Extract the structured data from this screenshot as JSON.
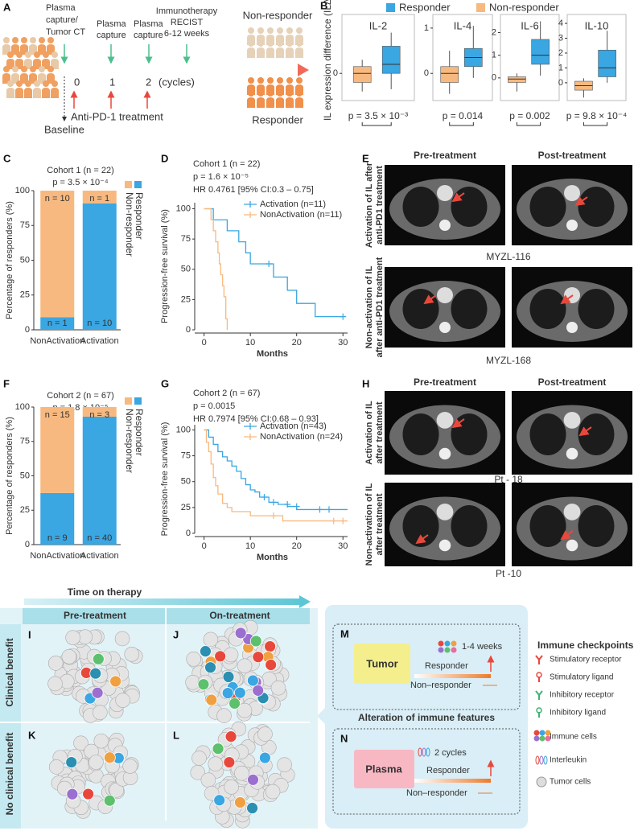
{
  "chart_data": [
    {
      "type": "box",
      "ylabel": "IL expression difference (ILΔ)",
      "series": [
        {
          "name": "Responder",
          "color": "#3aa6e2",
          "values": [
            [
              -0.35,
              0.0,
              0.2,
              0.6,
              0.9
            ],
            [
              -0.1,
              0.15,
              0.35,
              0.55,
              1.05
            ],
            [
              0.1,
              0.6,
              1.0,
              1.7,
              2.5
            ],
            [
              0.0,
              0.4,
              1.0,
              2.2,
              3.5
            ]
          ]
        },
        {
          "name": "Non-responder",
          "color": "#f7b97f",
          "values": [
            [
              -0.4,
              -0.2,
              0.0,
              0.15,
              0.3
            ],
            [
              -0.45,
              -0.2,
              0.0,
              0.15,
              0.5
            ],
            [
              -0.6,
              -0.2,
              -0.05,
              0.05,
              0.2
            ],
            [
              -1.0,
              -0.5,
              -0.2,
              0.1,
              0.3
            ]
          ]
        }
      ],
      "panels": [
        {
          "title": "IL-2",
          "ylim": [
            -0.6,
            1.3
          ],
          "yticks": [
            0
          ],
          "p_label": "p =  3.5 × 10⁻³"
        },
        {
          "title": "IL-4",
          "ylim": [
            -0.6,
            1.3
          ],
          "yticks": [
            0,
            1
          ],
          "p_label": "p = 0.014"
        },
        {
          "title": "IL-6",
          "ylim": [
            -1,
            2.8
          ],
          "yticks": [
            0,
            1,
            2
          ],
          "p_label": "p = 0.002"
        },
        {
          "title": "IL-10",
          "ylim": [
            -1.2,
            4.6
          ],
          "yticks": [
            0,
            1,
            2,
            3,
            4
          ],
          "p_label": "p =  9.8 × 10⁻⁴"
        }
      ]
    },
    {
      "type": "bar",
      "stacked": true,
      "title": "Cohort 1 (n = 22)",
      "subtitle": "p = 3.5 × 10⁻⁴",
      "ylabel": "Percentage of responders (%)",
      "categories": [
        "NonActivation",
        "Activation"
      ],
      "series": [
        {
          "name": "Responder",
          "color": "#3aa6e2",
          "values": [
            9.1,
            90.9
          ],
          "labels": [
            "n = 1",
            "n = 10"
          ]
        },
        {
          "name": "Non-responder",
          "color": "#f7b97f",
          "values": [
            90.9,
            9.1
          ],
          "labels": [
            "n = 10",
            "n = 1"
          ]
        }
      ],
      "ylim": [
        0,
        100
      ],
      "yticks": [
        0,
        25,
        50,
        75,
        100
      ]
    },
    {
      "type": "step",
      "title": "Cohort 1 (n = 22)",
      "subtitle": "p = 1.6 × 10⁻⁵",
      "note": "HR 0.4761 [95% CI:0.3 – 0.75]",
      "xlabel": "Months",
      "ylabel": "Progression-free survival (%)",
      "series": [
        {
          "name": "Activation (n=11)",
          "color": "#3aa6e2",
          "x": [
            0,
            2,
            5,
            7.5,
            9,
            10,
            15,
            18,
            20,
            24,
            30
          ],
          "values": [
            100,
            90.9,
            81.8,
            72.7,
            63.6,
            54.5,
            43.6,
            32.7,
            21.8,
            10.9,
            10.9
          ],
          "censor_x": [
            14,
            30
          ],
          "censor_y": [
            54.5,
            10.9
          ]
        },
        {
          "name": "NonActivation (n=11)",
          "color": "#f7b97f",
          "x": [
            0,
            1.5,
            2,
            2.5,
            3,
            3.3,
            3.6,
            4,
            4.3,
            4.7,
            5
          ],
          "values": [
            100,
            90.9,
            81.8,
            72.7,
            63.6,
            54.5,
            45.5,
            36.4,
            27.3,
            9.1,
            0
          ],
          "censor_x": [],
          "censor_y": []
        }
      ],
      "xlim": [
        -1.5,
        31
      ],
      "xticks": [
        0,
        10,
        20,
        30
      ],
      "ylim": [
        0,
        105
      ],
      "yticks": [
        0,
        25,
        50,
        75,
        100
      ]
    },
    {
      "type": "bar",
      "stacked": true,
      "title": "Cohort 2 (n = 67)",
      "subtitle": "p = 1.8 × 10⁻⁵",
      "ylabel": "Percentage of responders (%)",
      "categories": [
        "NonActivation",
        "Activation"
      ],
      "series": [
        {
          "name": "Responder",
          "color": "#3aa6e2",
          "values": [
            37.5,
            93.0
          ],
          "labels": [
            "n = 9",
            "n = 40"
          ]
        },
        {
          "name": "Non-responder",
          "color": "#f7b97f",
          "values": [
            62.5,
            7.0
          ],
          "labels": [
            "n = 15",
            "n = 3"
          ]
        }
      ],
      "ylim": [
        0,
        100
      ],
      "yticks": [
        0,
        25,
        50,
        75,
        100
      ]
    },
    {
      "type": "step",
      "title": "Cohort 2 (n = 67)",
      "subtitle": "p = 0.0015",
      "note": "HR 0.7974 [95% CI:0.68 – 0.93]",
      "xlabel": "Months",
      "ylabel": "Progression-free survival (%)",
      "series": [
        {
          "name": "Activation (n=43)",
          "color": "#3aa6e2",
          "x": [
            0,
            1,
            2,
            3,
            4,
            5,
            6,
            7,
            8,
            9,
            10,
            11,
            12,
            14,
            16,
            18,
            20,
            31
          ],
          "values": [
            100,
            93,
            86,
            79,
            74,
            70,
            65,
            60,
            53,
            47,
            42,
            40,
            35,
            30,
            28,
            26,
            23,
            23
          ],
          "censor_x": [
            13,
            15,
            18,
            20,
            25,
            27
          ],
          "censor_y": [
            35,
            30,
            28,
            26,
            23,
            23
          ]
        },
        {
          "name": "NonActivation (n=24)",
          "color": "#f7b97f",
          "x": [
            0,
            0.5,
            1,
            1.5,
            2,
            2.5,
            3,
            4,
            5,
            6,
            10,
            17,
            31
          ],
          "values": [
            100,
            88,
            79,
            67,
            54,
            46,
            38,
            29,
            25,
            21,
            17,
            12,
            12
          ],
          "censor_x": [
            15,
            28,
            30
          ],
          "censor_y": [
            17,
            12,
            12
          ]
        }
      ],
      "xlim": [
        -1.5,
        31
      ],
      "xticks": [
        0,
        10,
        20,
        30
      ],
      "ylim": [
        0,
        105
      ],
      "yticks": [
        0,
        25,
        50,
        75,
        100
      ]
    }
  ],
  "figure": {
    "labels": [
      "A",
      "B",
      "C",
      "D",
      "E",
      "F",
      "G",
      "H",
      "I",
      "J",
      "K",
      "L",
      "M",
      "N"
    ],
    "a": {
      "capture_ct": [
        "Plasma",
        "capture/",
        "Tumor CT"
      ],
      "capture_1": [
        "Plasma",
        "capture"
      ],
      "capture_2": [
        "Plasma",
        "capture"
      ],
      "immunotherapy": [
        "Immunotherapy",
        "RECIST",
        "6-12 weeks"
      ],
      "cycles": [
        "0",
        "1",
        "2",
        "(cycles)"
      ],
      "treatment": "Anti-PD-1 treatment",
      "baseline": "Baseline",
      "non_responder": "Non-responder",
      "responder": "Responder"
    },
    "e": {
      "headers": [
        "Pre-treatment",
        "Post-treatment"
      ],
      "rows": [
        [
          "Activation of IL after",
          "anti-PD1 treatment"
        ],
        [
          "Non-activation of IL",
          "after anti-PD1 treatment"
        ]
      ],
      "ids": [
        "MYZL-116",
        "MYZL-168"
      ]
    },
    "h": {
      "headers": [
        "Pre-treatment",
        "Post-treatment"
      ],
      "rows": [
        [
          "Activation of IL",
          "after treatment"
        ],
        [
          "Non-activation of IL",
          "after  treatment"
        ]
      ],
      "ids": [
        "Pt - 18",
        "Pt -10"
      ]
    },
    "schematic": {
      "time": "Time on therapy",
      "columns": [
        "Pre-treatment",
        "On-treatment"
      ],
      "rows": [
        "Clinical benefit",
        "No clinical benefit"
      ],
      "m": {
        "box": "Tumor",
        "time": "1-4 weeks",
        "responder": "Responder",
        "non_responder": "Non–responder"
      },
      "alteration": "Alteration of immune features",
      "n": {
        "box": "Plasma",
        "time": "2 cycles",
        "responder": "Responder",
        "non_responder": "Non–responder"
      },
      "legend": {
        "title": "Immune checkpoints",
        "items": [
          "Stimulatory receptor",
          "Stimulatory ligand",
          "Inhibitory receptor",
          "Inhibitory ligand",
          "Immune cells",
          "Interleukin",
          "Tumor cells"
        ]
      }
    }
  }
}
